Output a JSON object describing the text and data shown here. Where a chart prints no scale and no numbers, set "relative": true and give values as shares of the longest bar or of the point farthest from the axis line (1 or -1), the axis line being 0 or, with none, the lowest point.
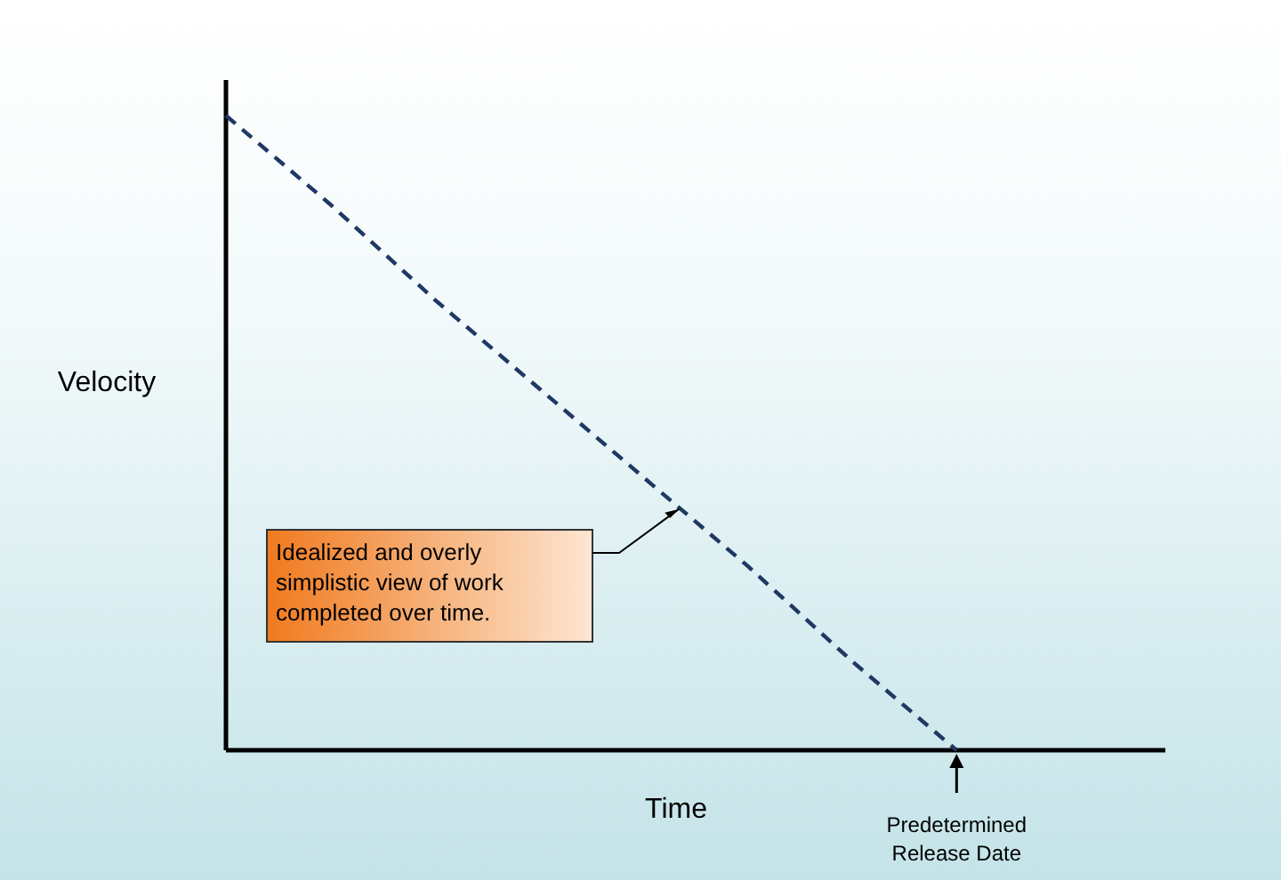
{
  "chart_data": {
    "type": "line",
    "relative": true,
    "categories": [
      null,
      null,
      null,
      null,
      null,
      null,
      null,
      null,
      null,
      null
    ],
    "xlabel": "Time",
    "ylabel": "Velocity",
    "line_style": "dashed",
    "series": [
      {
        "color": "#1f3864",
        "values": [
          1,
          0.86,
          0.71,
          0.57,
          0.43,
          0.29,
          0.14,
          0,
          null,
          null
        ]
      }
    ],
    "annotations": [
      "Idealized and overly simplistic view of work completed over time.",
      "Predetermined Release Date"
    ]
  }
}
